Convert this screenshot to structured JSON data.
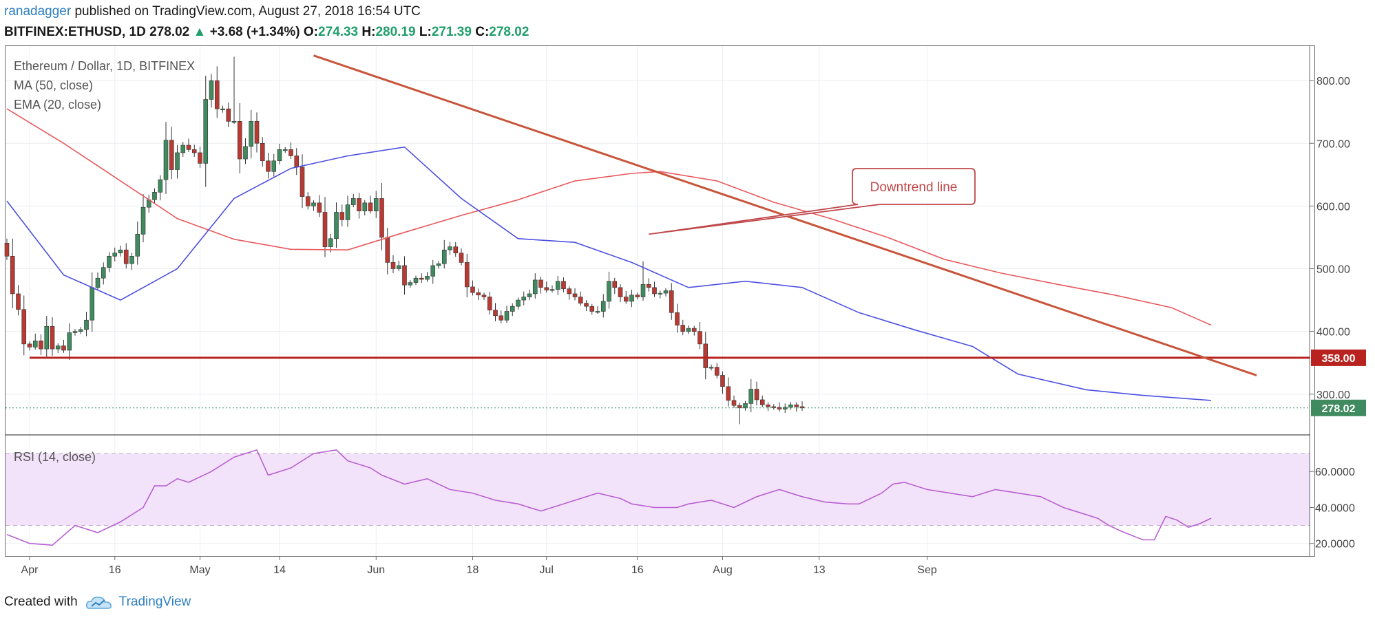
{
  "header": {
    "author": "ranadagger",
    "published_text": " published on TradingView.com, August 27, 2018 16:54 UTC",
    "symbol": "BITFINEX:ETHUSD, 1D",
    "last": "278.02",
    "change": "+3.68 (+1.34%)",
    "o_label": "O:",
    "o_value": "274.33",
    "h_label": "H:",
    "h_value": "280.19",
    "l_label": "L:",
    "l_value": "271.39",
    "c_label": "C:",
    "c_value": "278.02"
  },
  "footer": {
    "created_with": "Created with",
    "brand": "TradingView"
  },
  "colors": {
    "up": "#3f8a5e",
    "down": "#b83a33",
    "ma": "#e8585c",
    "ema": "#4b4fe0",
    "trend": "#c8553a",
    "support": "#b8231f",
    "rsi": "#b75fd1",
    "rsi_band": "#f3e3fa"
  },
  "chart_data": [
    {
      "type": "candlestick",
      "title": "Ethereum / Dollar, 1D, BITFINEX",
      "legend": [
        "MA (50, close)",
        "EMA (20, close)"
      ],
      "ylim": [
        235,
        855
      ],
      "y_ticks": [
        "800.00",
        "700.00",
        "600.00",
        "500.00",
        "400.00",
        "300.00"
      ],
      "y_tick_values": [
        800,
        700,
        600,
        500,
        400,
        300
      ],
      "x_ticks": [
        "Apr",
        "16",
        "May",
        "14",
        "Jun",
        "18",
        "Jul",
        "16",
        "Aug",
        "13",
        "Sep"
      ],
      "x_tick_days": [
        4,
        19,
        34,
        48,
        65,
        82,
        95,
        111,
        126,
        143,
        162
      ],
      "day_start": "2018-03-28",
      "close": [
        520,
        460,
        435,
        380,
        375,
        385,
        372,
        408,
        372,
        377,
        370,
        398,
        400,
        403,
        418,
        470,
        485,
        502,
        520,
        525,
        530,
        508,
        520,
        555,
        598,
        610,
        622,
        642,
        705,
        658,
        685,
        697,
        690,
        685,
        668,
        770,
        800,
        755,
        755,
        735,
        735,
        675,
        695,
        735,
        700,
        672,
        655,
        672,
        690,
        690,
        680,
        662,
        615,
        600,
        605,
        590,
        535,
        548,
        590,
        578,
        602,
        612,
        592,
        605,
        592,
        612,
        550,
        510,
        500,
        505,
        474,
        478,
        485,
        483,
        488,
        505,
        508,
        530,
        535,
        525,
        510,
        471,
        462,
        458,
        455,
        434,
        425,
        418,
        432,
        440,
        450,
        455,
        460,
        482,
        470,
        466,
        467,
        480,
        468,
        460,
        455,
        445,
        440,
        432,
        432,
        448,
        480,
        470,
        455,
        448,
        458,
        455,
        475,
        470,
        460,
        461,
        465,
        430,
        410,
        400,
        405,
        400,
        380,
        342,
        343,
        330,
        312,
        290,
        282,
        278,
        285,
        308,
        291,
        283,
        280,
        279,
        276,
        279,
        283,
        280,
        278
      ],
      "highs": [
        {
          "day": 40,
          "value": 838
        },
        {
          "day": 112,
          "value": 512
        }
      ],
      "lows": [
        {
          "day": 3,
          "value": 362
        },
        {
          "day": 129,
          "value": 252
        }
      ],
      "ma50": [
        [
          0,
          755
        ],
        [
          10,
          700
        ],
        [
          20,
          640
        ],
        [
          30,
          580
        ],
        [
          40,
          547
        ],
        [
          50,
          531
        ],
        [
          60,
          530
        ],
        [
          70,
          558
        ],
        [
          80,
          585
        ],
        [
          90,
          610
        ],
        [
          100,
          640
        ],
        [
          110,
          652
        ],
        [
          115,
          655
        ],
        [
          125,
          640
        ],
        [
          135,
          606
        ],
        [
          145,
          580
        ],
        [
          155,
          550
        ],
        [
          165,
          515
        ],
        [
          175,
          493
        ],
        [
          185,
          475
        ],
        [
          195,
          458
        ],
        [
          205,
          438
        ],
        [
          210,
          418
        ],
        [
          212,
          410
        ]
      ],
      "ema20": [
        [
          0,
          608
        ],
        [
          10,
          490
        ],
        [
          20,
          450
        ],
        [
          30,
          500
        ],
        [
          40,
          612
        ],
        [
          50,
          660
        ],
        [
          60,
          680
        ],
        [
          70,
          694
        ],
        [
          80,
          612
        ],
        [
          90,
          548
        ],
        [
          100,
          542
        ],
        [
          110,
          510
        ],
        [
          120,
          470
        ],
        [
          130,
          480
        ],
        [
          140,
          470
        ],
        [
          150,
          430
        ],
        [
          160,
          402
        ],
        [
          170,
          376
        ],
        [
          178,
          332
        ],
        [
          190,
          307
        ],
        [
          200,
          298
        ],
        [
          212,
          290
        ]
      ],
      "annotations": [
        {
          "label": "Downtrend line",
          "start_day": 54,
          "start_price": 840,
          "end_day": 220,
          "end_price": 330
        },
        {
          "label": "358.00",
          "type": "horizontal",
          "price": 358,
          "start_day": 4
        }
      ],
      "last_price_label": "278.02",
      "last_price": 278.02
    },
    {
      "type": "line",
      "title": "RSI (14, close)",
      "ylim": [
        13,
        80
      ],
      "y_ticks": [
        "60.0000",
        "40.0000",
        "20.0000"
      ],
      "y_tick_values": [
        60,
        40,
        20
      ],
      "band": [
        30,
        70
      ],
      "values": [
        [
          0,
          25
        ],
        [
          4,
          20
        ],
        [
          8,
          19
        ],
        [
          12,
          30
        ],
        [
          16,
          26
        ],
        [
          20,
          32
        ],
        [
          24,
          40
        ],
        [
          26,
          52
        ],
        [
          28,
          52
        ],
        [
          30,
          56
        ],
        [
          32,
          54
        ],
        [
          36,
          60
        ],
        [
          40,
          68
        ],
        [
          44,
          72
        ],
        [
          46,
          58
        ],
        [
          50,
          62
        ],
        [
          54,
          70
        ],
        [
          58,
          72
        ],
        [
          60,
          66
        ],
        [
          64,
          62
        ],
        [
          66,
          58
        ],
        [
          70,
          53
        ],
        [
          74,
          56
        ],
        [
          78,
          50
        ],
        [
          82,
          48
        ],
        [
          86,
          44
        ],
        [
          90,
          42
        ],
        [
          94,
          38
        ],
        [
          96,
          40
        ],
        [
          100,
          44
        ],
        [
          104,
          48
        ],
        [
          108,
          45
        ],
        [
          110,
          42
        ],
        [
          114,
          40
        ],
        [
          118,
          40
        ],
        [
          120,
          42
        ],
        [
          124,
          44
        ],
        [
          128,
          40
        ],
        [
          132,
          46
        ],
        [
          136,
          50
        ],
        [
          140,
          46
        ],
        [
          144,
          43
        ],
        [
          148,
          42
        ],
        [
          150,
          42
        ],
        [
          154,
          48
        ],
        [
          156,
          53
        ],
        [
          158,
          54
        ],
        [
          162,
          50
        ],
        [
          166,
          48
        ],
        [
          170,
          46
        ],
        [
          174,
          50
        ],
        [
          178,
          48
        ],
        [
          182,
          46
        ],
        [
          186,
          40
        ],
        [
          188,
          38
        ],
        [
          192,
          34
        ],
        [
          194,
          30
        ],
        [
          196,
          27
        ],
        [
          200,
          22
        ],
        [
          202,
          22
        ],
        [
          204,
          35
        ],
        [
          206,
          33
        ],
        [
          208,
          29
        ],
        [
          210,
          31
        ],
        [
          212,
          34
        ]
      ]
    }
  ]
}
